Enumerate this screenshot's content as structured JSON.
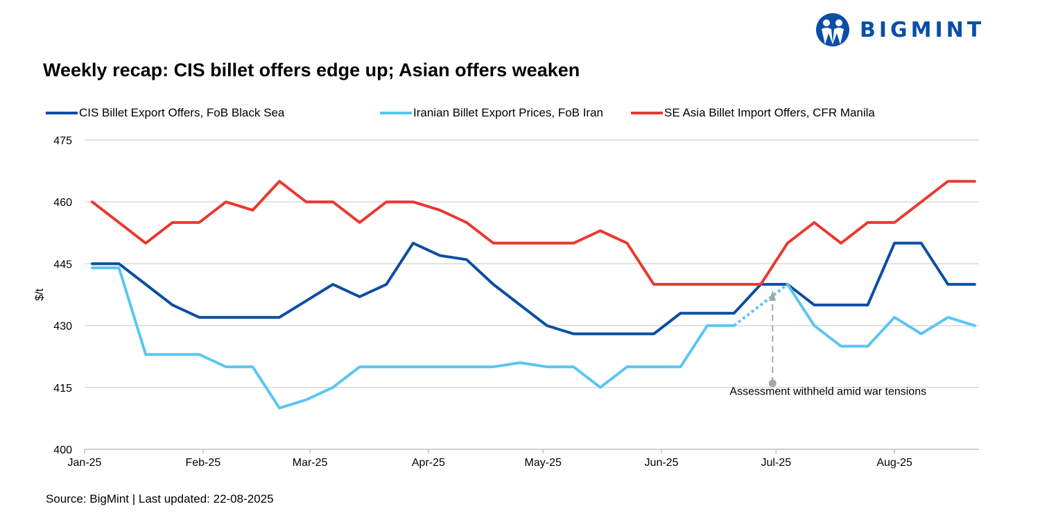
{
  "logo": {
    "text": "BIGMINT"
  },
  "chart_data": {
    "type": "line",
    "title": "Weekly recap: CIS billet offers edge up; Asian offers weaken",
    "ylabel": "$/t",
    "xlabel": "",
    "ylim": [
      400,
      475
    ],
    "yticks": [
      "400",
      "415",
      "430",
      "445",
      "460",
      "475"
    ],
    "xticks": [
      {
        "label": "Jan-25",
        "date": "2025-01-01"
      },
      {
        "label": "Feb-25",
        "date": "2025-02-01"
      },
      {
        "label": "Mar-25",
        "date": "2025-03-01"
      },
      {
        "label": "Apr-25",
        "date": "2025-04-01"
      },
      {
        "label": "May-25",
        "date": "2025-05-01"
      },
      {
        "label": "Jun-25",
        "date": "2025-06-01"
      },
      {
        "label": "Jul-25",
        "date": "2025-07-01"
      },
      {
        "label": "Aug-25",
        "date": "2025-08-01"
      }
    ],
    "x_start": "2025-01-03",
    "x_step_days": 7,
    "grid": true,
    "legend_position": "top",
    "series": [
      {
        "name": "CIS Billet Export Offers, FoB Black Sea",
        "color": "#0b4ea2",
        "values": [
          445,
          445,
          440,
          435,
          432,
          432,
          432,
          432,
          436,
          440,
          437,
          440,
          450,
          447,
          446,
          440,
          435,
          430,
          428,
          428,
          428,
          428,
          433,
          433,
          433,
          440,
          440,
          435,
          435,
          435,
          450,
          450,
          440,
          440
        ]
      },
      {
        "name": "Iranian Billet Export Prices, FoB Iran",
        "color": "#5bc5f2",
        "values": [
          444,
          444,
          423,
          423,
          423,
          420,
          420,
          410,
          412,
          415,
          420,
          420,
          420,
          420,
          420,
          420,
          421,
          420,
          420,
          415,
          420,
          420,
          420,
          430,
          430,
          null,
          440,
          430,
          425,
          425,
          432,
          428,
          432,
          430
        ]
      },
      {
        "name": "SE Asia Billet Import Offers, CFR Manila",
        "color": "#e8392f",
        "values": [
          460,
          455,
          450,
          455,
          455,
          460,
          458,
          465,
          460,
          460,
          455,
          460,
          460,
          458,
          455,
          450,
          450,
          450,
          450,
          453,
          450,
          440,
          440,
          440,
          440,
          440,
          450,
          455,
          450,
          455,
          455,
          460,
          465,
          465
        ]
      }
    ],
    "annotation": {
      "text": "Assessment withheld amid  war tensions",
      "series": 1,
      "gap_index": 25
    }
  },
  "source": "Source: BigMint | Last updated: 22-08-2025"
}
